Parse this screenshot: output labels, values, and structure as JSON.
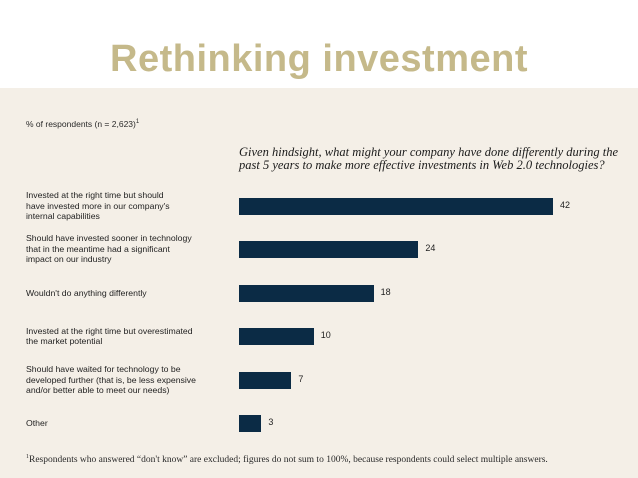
{
  "slide": {
    "title": "Rethinking investment"
  },
  "chart_data": {
    "type": "bar",
    "orientation": "horizontal",
    "respondents_label": "% of respondents (n = 2,623)",
    "respondents_footnote_mark": "1",
    "title": "Given hindsight, what might your company have done differently during the past 5 years to make more effective investments in Web 2.0 technologies?",
    "categories": [
      [
        "Invested at the right time but should",
        "have invested more in our company's",
        "internal capabilities"
      ],
      [
        "Should have invested sooner in technology",
        "that in the meantime had a significant",
        "impact on our industry"
      ],
      [
        "Wouldn't do anything differently"
      ],
      [
        "Invested at the right time but overestimated",
        "the market potential"
      ],
      [
        "Should have waited for technology to be",
        "developed further (that is, be less expensive",
        "and/or better able to meet our needs)"
      ],
      [
        "Other"
      ]
    ],
    "values": [
      42,
      24,
      18,
      10,
      7,
      3
    ],
    "value_labels": [
      "42",
      "24",
      "18",
      "10",
      "7",
      "3"
    ],
    "bar_color": "#0b2b45",
    "footnote_mark": "1",
    "footnote": "Respondents who answered “don't know” are excluded; figures do not sum to 100%, because respondents could select multiple answers."
  }
}
